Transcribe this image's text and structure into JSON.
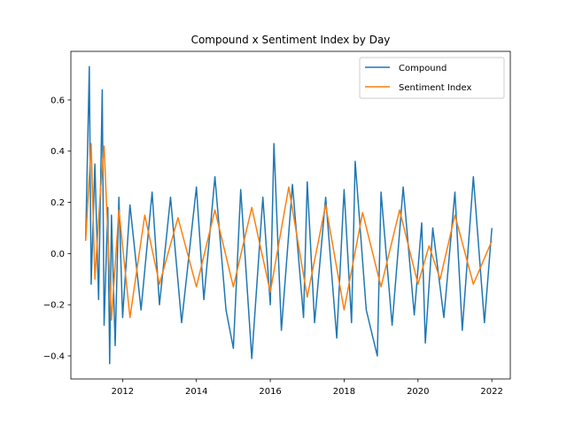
{
  "chart_data": {
    "type": "line",
    "title": "Compound x Sentiment Index by Day",
    "xlabel": "",
    "ylabel": "",
    "xlim": [
      2010.6,
      2022.5
    ],
    "ylim": [
      -0.49,
      0.79
    ],
    "x_ticks": [
      2012,
      2014,
      2016,
      2018,
      2020,
      2022
    ],
    "x_tick_labels": [
      "2012",
      "2014",
      "2016",
      "2018",
      "2020",
      "2022"
    ],
    "y_ticks": [
      -0.4,
      -0.2,
      0.0,
      0.2,
      0.4,
      0.6
    ],
    "y_tick_labels": [
      "−0.4",
      "−0.2",
      "0.0",
      "0.2",
      "0.4",
      "0.6"
    ],
    "grid": false,
    "legend_position": "top-right",
    "series": [
      {
        "name": "Compound",
        "color": "#1f77b4",
        "x": [
          2011.0,
          2011.1,
          2011.15,
          2011.25,
          2011.35,
          2011.45,
          2011.5,
          2011.6,
          2011.65,
          2011.7,
          2011.8,
          2011.9,
          2012.0,
          2012.2,
          2012.5,
          2012.8,
          2013.0,
          2013.3,
          2013.6,
          2014.0,
          2014.2,
          2014.5,
          2014.8,
          2015.0,
          2015.2,
          2015.5,
          2015.8,
          2016.0,
          2016.1,
          2016.3,
          2016.6,
          2016.9,
          2017.0,
          2017.2,
          2017.5,
          2017.8,
          2018.0,
          2018.2,
          2018.3,
          2018.6,
          2018.9,
          2019.0,
          2019.3,
          2019.6,
          2019.9,
          2020.1,
          2020.2,
          2020.4,
          2020.7,
          2021.0,
          2021.2,
          2021.5,
          2021.8,
          2022.0
        ],
        "values": [
          0.05,
          0.73,
          -0.12,
          0.35,
          -0.18,
          0.64,
          -0.28,
          0.18,
          -0.43,
          0.15,
          -0.36,
          0.22,
          -0.25,
          0.19,
          -0.22,
          0.24,
          -0.2,
          0.22,
          -0.27,
          0.26,
          -0.18,
          0.3,
          -0.22,
          -0.37,
          0.25,
          -0.41,
          0.22,
          -0.2,
          0.43,
          -0.3,
          0.27,
          -0.25,
          0.28,
          -0.27,
          0.22,
          -0.33,
          0.25,
          -0.27,
          0.36,
          -0.22,
          -0.4,
          0.24,
          -0.28,
          0.26,
          -0.24,
          0.12,
          -0.35,
          0.1,
          -0.25,
          0.24,
          -0.3,
          0.3,
          -0.27,
          0.1
        ]
      },
      {
        "name": "Sentiment Index",
        "color": "#ff7f0e",
        "x": [
          2011.0,
          2011.15,
          2011.25,
          2011.4,
          2011.5,
          2011.7,
          2011.9,
          2012.2,
          2012.6,
          2013.0,
          2013.5,
          2014.0,
          2014.5,
          2015.0,
          2015.5,
          2016.0,
          2016.5,
          2017.0,
          2017.5,
          2018.0,
          2018.5,
          2019.0,
          2019.5,
          2020.0,
          2020.3,
          2020.6,
          2021.0,
          2021.5,
          2022.0
        ],
        "values": [
          0.05,
          0.43,
          -0.1,
          0.24,
          0.42,
          -0.26,
          0.17,
          -0.25,
          0.15,
          -0.12,
          0.14,
          -0.13,
          0.17,
          -0.13,
          0.18,
          -0.15,
          0.26,
          -0.17,
          0.19,
          -0.22,
          0.16,
          -0.13,
          0.17,
          -0.12,
          0.03,
          -0.1,
          0.15,
          -0.12,
          0.05
        ]
      }
    ]
  }
}
